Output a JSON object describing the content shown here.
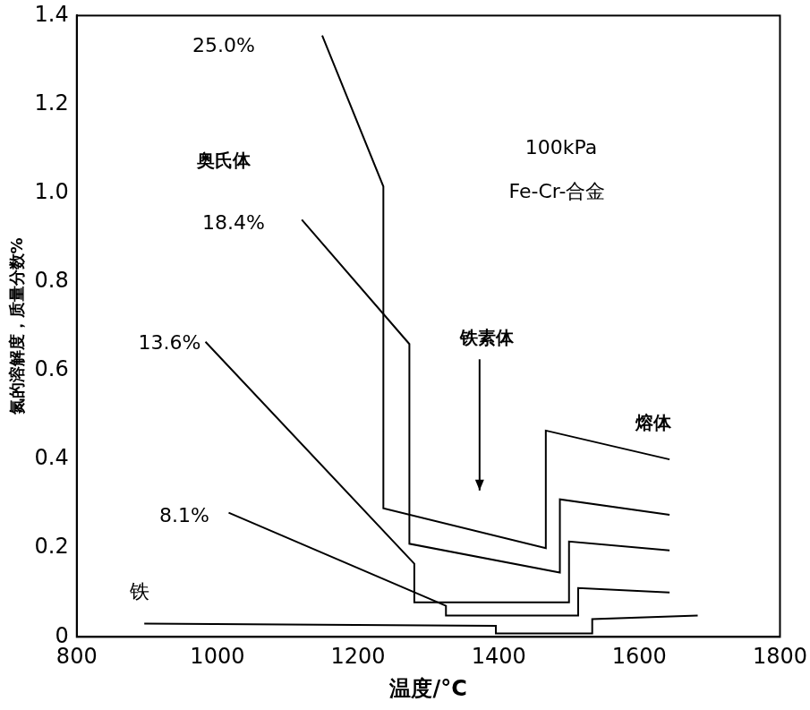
{
  "chart_data": {
    "type": "line",
    "x_label": "温度/°C",
    "y_label": "氮的溶解度，质量分数%",
    "annotations": [
      "奥氏体",
      "铁素体",
      "熔体",
      "100kPa",
      "Fe-Cr-合金"
    ],
    "series": [
      {
        "name": "25.0%",
        "color": "#000000",
        "x": [
          1149,
          1236,
          1236,
          1467,
          1467,
          1643
        ],
        "values": [
          1.355,
          1.015,
          0.29,
          0.2,
          0.465,
          0.4
        ]
      },
      {
        "name": "18.4%",
        "color": "#000000",
        "x": [
          1120,
          1273,
          1273,
          1487,
          1487,
          1643
        ],
        "values": [
          0.94,
          0.66,
          0.21,
          0.145,
          0.31,
          0.275
        ]
      },
      {
        "name": "13.6%",
        "color": "#000000",
        "x": [
          983,
          1280,
          1280,
          1500,
          1500,
          1643
        ],
        "values": [
          0.665,
          0.165,
          0.078,
          0.078,
          0.215,
          0.195
        ]
      },
      {
        "name": "8.1%",
        "color": "#000000",
        "x": [
          1016,
          1325,
          1325,
          1513,
          1513,
          1643
        ],
        "values": [
          0.28,
          0.07,
          0.048,
          0.048,
          0.11,
          0.1
        ]
      },
      {
        "name": "铁",
        "color": "#000000",
        "x": [
          896,
          1396,
          1396,
          1533,
          1533,
          1683
        ],
        "values": [
          0.03,
          0.025,
          0.008,
          0.008,
          0.04,
          0.048
        ]
      }
    ],
    "xlim": [
      800,
      1800
    ],
    "xticks": [
      800,
      1000,
      1200,
      1400,
      1600,
      1800
    ],
    "ylim": [
      0,
      1.4
    ],
    "yticks": [
      0,
      0.2,
      0.4,
      0.6,
      0.8,
      {
        "value": 1,
        "label": "1.0"
      },
      1.2,
      1.4
    ],
    "grid": false
  }
}
